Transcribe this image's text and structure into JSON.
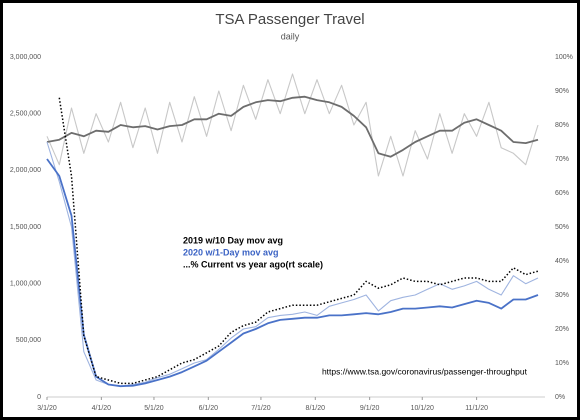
{
  "chart_data": {
    "type": "line",
    "title": "TSA Passenger Travel",
    "subtitle": "daily",
    "annotation": "https://www.tsa.gov/coronavirus/passenger-throughput",
    "x": [
      "3/1/20",
      "3/8/20",
      "3/15/20",
      "3/22/20",
      "3/29/20",
      "4/5/20",
      "4/12/20",
      "4/19/20",
      "4/26/20",
      "5/3/20",
      "5/10/20",
      "5/17/20",
      "5/24/20",
      "5/31/20",
      "6/7/20",
      "6/14/20",
      "6/21/20",
      "6/28/20",
      "7/5/20",
      "7/12/20",
      "7/19/20",
      "7/26/20",
      "8/2/20",
      "8/9/20",
      "8/16/20",
      "8/23/20",
      "8/30/20",
      "9/6/20",
      "9/13/20",
      "9/20/20",
      "9/27/20",
      "10/4/20",
      "10/11/20",
      "10/18/20",
      "10/25/20",
      "11/1/20",
      "11/8/20",
      "11/15/20",
      "11/22/20",
      "11/29/20",
      "12/6/20"
    ],
    "xlim": [
      "3/1/20",
      "12/10/20"
    ],
    "xticks": [
      "3/1/20",
      "4/1/20",
      "5/1/20",
      "6/1/20",
      "7/1/20",
      "8/1/20",
      "9/1/20",
      "10/1/20",
      "11/1/20"
    ],
    "ylim": [
      0,
      3000000
    ],
    "yticks": [
      0,
      {
        "value": 500000,
        "label": "500,000"
      },
      {
        "value": 1000000,
        "label": "1,000,000"
      },
      {
        "value": 1500000,
        "label": "1,500,000"
      },
      {
        "value": 2000000,
        "label": "2,000,000"
      },
      {
        "value": 2500000,
        "label": "2,500,000"
      },
      {
        "value": 3000000,
        "label": "3,000,000"
      }
    ],
    "y2lim": [
      0,
      100
    ],
    "y2ticks": [
      {
        "value": 0,
        "label": "0%"
      },
      {
        "value": 10,
        "label": "10%"
      },
      {
        "value": 20,
        "label": "20%"
      },
      {
        "value": 30,
        "label": "30%"
      },
      {
        "value": 40,
        "label": "40%"
      },
      {
        "value": 50,
        "label": "50%"
      },
      {
        "value": 60,
        "label": "60%"
      },
      {
        "value": 70,
        "label": "70%"
      },
      {
        "value": 80,
        "label": "80%"
      },
      {
        "value": 90,
        "label": "90%"
      },
      {
        "value": 100,
        "label": "100%"
      }
    ],
    "series": [
      {
        "name": "2019 w/10 Day mov avg",
        "label_color": "#000000",
        "color": "#c8c8c8",
        "avg_color": "#6d6d6d",
        "values": [
          2300000,
          2050000,
          2550000,
          2150000,
          2500000,
          2250000,
          2600000,
          2200000,
          2550000,
          2150000,
          2600000,
          2250000,
          2650000,
          2300000,
          2700000,
          2350000,
          2750000,
          2450000,
          2800000,
          2500000,
          2850000,
          2500000,
          2800000,
          2500000,
          2750000,
          2400000,
          2600000,
          1950000,
          2300000,
          1950000,
          2350000,
          2100000,
          2500000,
          2150000,
          2500000,
          2300000,
          2600000,
          2200000,
          2150000,
          2050000,
          2400000
        ],
        "avg": [
          2250000,
          2270000,
          2330000,
          2300000,
          2350000,
          2340000,
          2400000,
          2380000,
          2390000,
          2360000,
          2390000,
          2400000,
          2450000,
          2450000,
          2500000,
          2480000,
          2560000,
          2600000,
          2620000,
          2610000,
          2640000,
          2650000,
          2620000,
          2600000,
          2560000,
          2480000,
          2380000,
          2150000,
          2120000,
          2180000,
          2250000,
          2300000,
          2350000,
          2350000,
          2420000,
          2450000,
          2400000,
          2350000,
          2250000,
          2240000,
          2270000
        ]
      },
      {
        "name": "2020 w/1-Day mov avg",
        "label_color": "#3a62c4",
        "color": "#9fb4e0",
        "avg_color": "#4a72c8",
        "values": [
          2250000,
          1900000,
          1500000,
          400000,
          150000,
          110000,
          95000,
          110000,
          130000,
          170000,
          200000,
          250000,
          300000,
          330000,
          420000,
          520000,
          600000,
          620000,
          700000,
          720000,
          730000,
          750000,
          720000,
          800000,
          830000,
          860000,
          900000,
          760000,
          850000,
          880000,
          900000,
          950000,
          1000000,
          950000,
          980000,
          1020000,
          950000,
          900000,
          1070000,
          1000000,
          1050000
        ],
        "avg": [
          2100000,
          1950000,
          1600000,
          550000,
          180000,
          110000,
          95000,
          100000,
          120000,
          150000,
          180000,
          220000,
          270000,
          320000,
          400000,
          480000,
          560000,
          600000,
          650000,
          680000,
          690000,
          700000,
          700000,
          720000,
          720000,
          730000,
          740000,
          730000,
          750000,
          780000,
          780000,
          790000,
          800000,
          790000,
          820000,
          850000,
          830000,
          780000,
          860000,
          860000,
          900000
        ]
      },
      {
        "name": "...% Current vs year ago(rt scale)",
        "label_color": "#000000",
        "color": "#000000",
        "axis": "y2",
        "dashed": true,
        "values": [
          null,
          88,
          65,
          18,
          6,
          5,
          4,
          4,
          5,
          6,
          8,
          10,
          11,
          13,
          15,
          19,
          21,
          22,
          25,
          26,
          27,
          27,
          27,
          28,
          29,
          30,
          34,
          32,
          33,
          35,
          34,
          34,
          33,
          34,
          35,
          35,
          34,
          34,
          38,
          36,
          37
        ]
      }
    ]
  }
}
